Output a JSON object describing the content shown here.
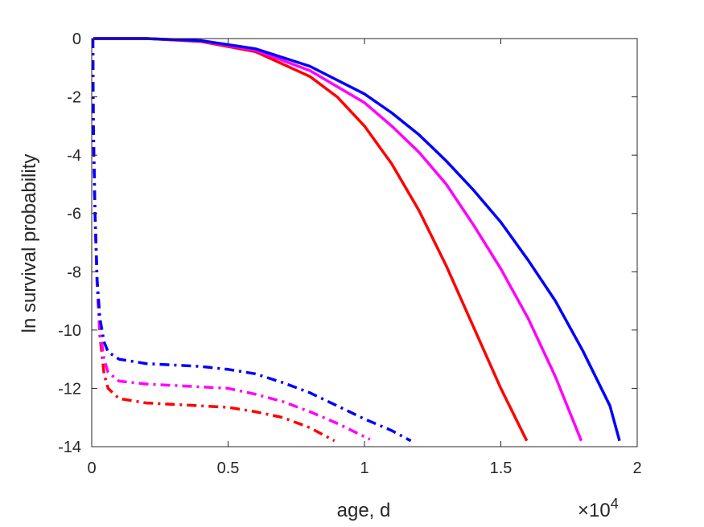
{
  "chart_data": {
    "type": "line",
    "title": "",
    "xlabel": "age, d",
    "ylabel": "ln survival probability",
    "x_exponent_label": "×10",
    "x_exponent_power": "4",
    "xlim": [
      0,
      20000
    ],
    "ylim": [
      -14,
      0
    ],
    "xticks": [
      0,
      5000,
      10000,
      15000,
      20000
    ],
    "xtick_labels": [
      "0",
      "0.5",
      "1",
      "1.5",
      "2"
    ],
    "yticks": [
      0,
      -2,
      -4,
      -6,
      -8,
      -10,
      -12,
      -14
    ],
    "ytick_labels": [
      "0",
      "-2",
      "-4",
      "-6",
      "-8",
      "-10",
      "-12",
      "-14"
    ],
    "grid": false,
    "legend": "none",
    "series": [
      {
        "color": "#ff0000",
        "style": "solid",
        "points": [
          [
            60,
            0
          ],
          [
            2000,
            0
          ],
          [
            4000,
            -0.1
          ],
          [
            6000,
            -0.45
          ],
          [
            8000,
            -1.3
          ],
          [
            9000,
            -2.0
          ],
          [
            10000,
            -3.0
          ],
          [
            11000,
            -4.3
          ],
          [
            12000,
            -5.9
          ],
          [
            13000,
            -7.8
          ],
          [
            14000,
            -9.9
          ],
          [
            15000,
            -12.0
          ],
          [
            15950,
            -13.8
          ]
        ]
      },
      {
        "color": "#ff00ff",
        "style": "solid",
        "points": [
          [
            60,
            0
          ],
          [
            2000,
            0
          ],
          [
            4000,
            -0.08
          ],
          [
            6000,
            -0.4
          ],
          [
            8000,
            -1.1
          ],
          [
            10000,
            -2.2
          ],
          [
            11000,
            -3.0
          ],
          [
            12000,
            -3.9
          ],
          [
            13000,
            -5.0
          ],
          [
            14000,
            -6.4
          ],
          [
            15000,
            -7.9
          ],
          [
            16000,
            -9.6
          ],
          [
            17000,
            -11.6
          ],
          [
            17950,
            -13.8
          ]
        ]
      },
      {
        "color": "#0000ff",
        "style": "solid",
        "points": [
          [
            60,
            0
          ],
          [
            2000,
            0
          ],
          [
            4000,
            -0.07
          ],
          [
            6000,
            -0.35
          ],
          [
            8000,
            -0.95
          ],
          [
            10000,
            -1.9
          ],
          [
            11000,
            -2.55
          ],
          [
            12000,
            -3.3
          ],
          [
            13000,
            -4.2
          ],
          [
            14000,
            -5.2
          ],
          [
            15000,
            -6.3
          ],
          [
            16000,
            -7.6
          ],
          [
            17000,
            -9.0
          ],
          [
            18000,
            -10.7
          ],
          [
            19000,
            -12.6
          ],
          [
            19350,
            -13.8
          ]
        ]
      },
      {
        "color": "#ff0000",
        "style": "dashdot",
        "points": [
          [
            40,
            0
          ],
          [
            60,
            -3
          ],
          [
            120,
            -6
          ],
          [
            200,
            -8.5
          ],
          [
            300,
            -10.2
          ],
          [
            450,
            -11.5
          ],
          [
            600,
            -12.0
          ],
          [
            1000,
            -12.35
          ],
          [
            2000,
            -12.5
          ],
          [
            3000,
            -12.55
          ],
          [
            4000,
            -12.6
          ],
          [
            5000,
            -12.65
          ],
          [
            6000,
            -12.8
          ],
          [
            7000,
            -13.0
          ],
          [
            8000,
            -13.35
          ],
          [
            8900,
            -13.8
          ]
        ]
      },
      {
        "color": "#ff00ff",
        "style": "dashdot",
        "points": [
          [
            40,
            0
          ],
          [
            60,
            -3
          ],
          [
            120,
            -6
          ],
          [
            200,
            -8.5
          ],
          [
            300,
            -10.0
          ],
          [
            450,
            -11.0
          ],
          [
            600,
            -11.45
          ],
          [
            1000,
            -11.75
          ],
          [
            2000,
            -11.85
          ],
          [
            3000,
            -11.9
          ],
          [
            4000,
            -11.95
          ],
          [
            5000,
            -12.0
          ],
          [
            6000,
            -12.2
          ],
          [
            7000,
            -12.45
          ],
          [
            8000,
            -12.8
          ],
          [
            9000,
            -13.2
          ],
          [
            10200,
            -13.75
          ]
        ]
      },
      {
        "color": "#0000ff",
        "style": "dashdot",
        "points": [
          [
            40,
            0
          ],
          [
            60,
            -3
          ],
          [
            120,
            -6
          ],
          [
            200,
            -8.3
          ],
          [
            300,
            -9.6
          ],
          [
            450,
            -10.4
          ],
          [
            600,
            -10.75
          ],
          [
            1000,
            -11.0
          ],
          [
            2000,
            -11.15
          ],
          [
            3000,
            -11.2
          ],
          [
            4000,
            -11.25
          ],
          [
            5000,
            -11.35
          ],
          [
            6000,
            -11.5
          ],
          [
            7000,
            -11.8
          ],
          [
            8000,
            -12.15
          ],
          [
            9000,
            -12.6
          ],
          [
            10000,
            -13.05
          ],
          [
            11000,
            -13.45
          ],
          [
            11700,
            -13.8
          ]
        ]
      }
    ]
  }
}
